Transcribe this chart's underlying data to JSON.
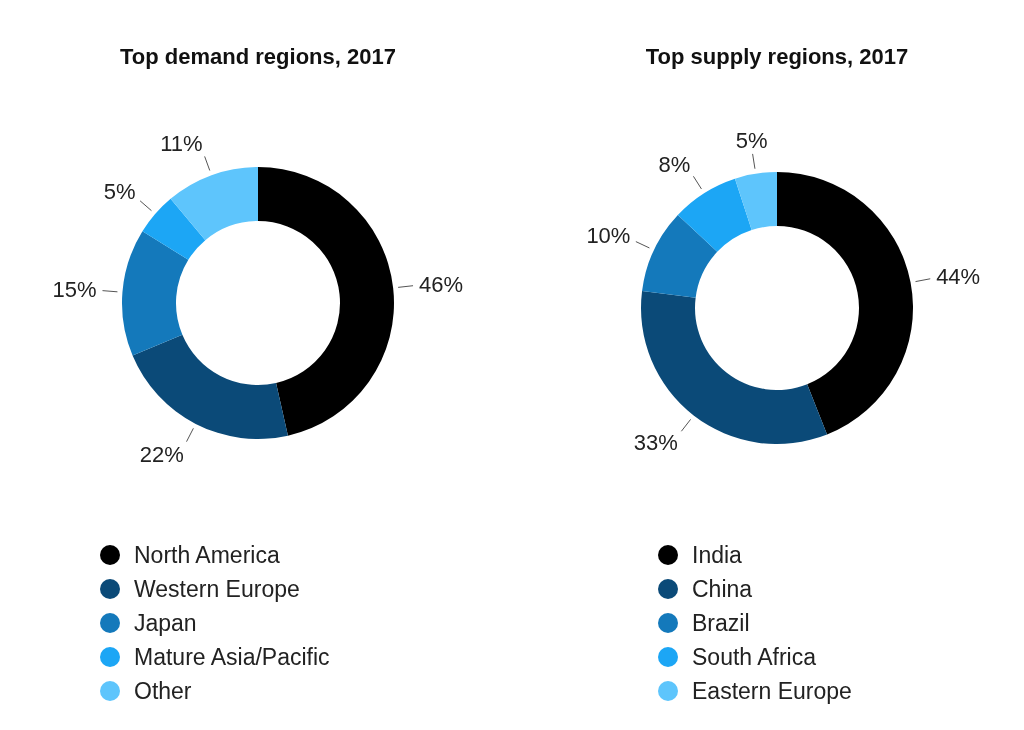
{
  "chart_data": [
    {
      "type": "donut",
      "title": "Top demand regions, 2017",
      "categories": [
        "North America",
        "Western Europe",
        "Japan",
        "Mature Asia/Pacific",
        "Other"
      ],
      "values": [
        46,
        22,
        15,
        5,
        11
      ],
      "value_labels": [
        "46%",
        "22%",
        "15%",
        "5%",
        "11%"
      ],
      "colors": [
        "#000000",
        "#0b4a78",
        "#1479bb",
        "#1ca6f5",
        "#5ec5fc"
      ],
      "legend": "bottom"
    },
    {
      "type": "donut",
      "title": "Top supply regions, 2017",
      "categories": [
        "India",
        "China",
        "Brazil",
        "South Africa",
        "Eastern Europe"
      ],
      "values": [
        44,
        33,
        10,
        8,
        5
      ],
      "value_labels": [
        "44%",
        "33%",
        "10%",
        "8%",
        "5%"
      ],
      "colors": [
        "#000000",
        "#0b4a78",
        "#1479bb",
        "#1ca6f5",
        "#5ec5fc"
      ],
      "legend": "bottom"
    }
  ]
}
